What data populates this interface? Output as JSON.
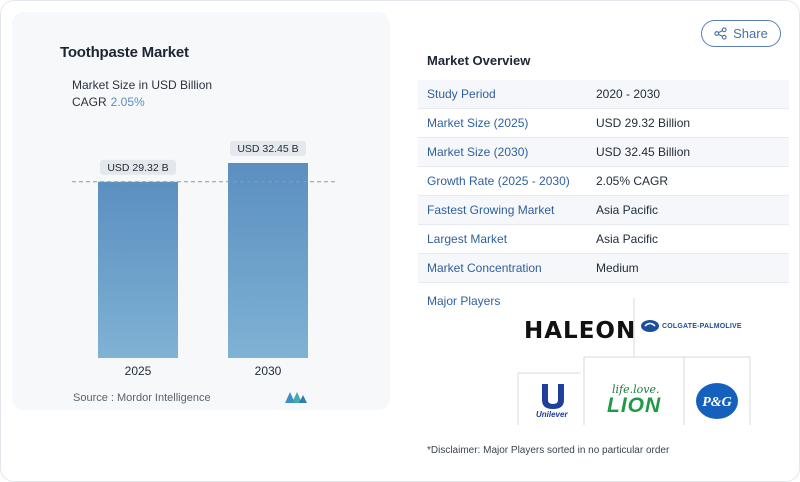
{
  "chart": {
    "title": "Toothpaste Market",
    "subtitle": "Market Size in USD Billion",
    "cagr_label": "CAGR",
    "cagr_value": "2.05%",
    "source": "Source :  Mordor Intelligence"
  },
  "chart_data": {
    "type": "bar",
    "categories": [
      "2025",
      "2030"
    ],
    "values": [
      29.32,
      32.45
    ],
    "data_labels": [
      "USD 29.32 B",
      "USD 32.45 B"
    ],
    "title": "Toothpaste Market",
    "subtitle": "Market Size in USD Billion",
    "ylim": [
      0,
      32.45
    ],
    "reference_line": 29.32,
    "bar_color": "#5b8fc0",
    "grid": false
  },
  "share": {
    "label": "Share",
    "icon": "share-icon"
  },
  "overview": {
    "title": "Market Overview",
    "rows": [
      {
        "key": "Study Period",
        "value": "2020 - 2030"
      },
      {
        "key": "Market Size (2025)",
        "value": "USD 29.32 Billion"
      },
      {
        "key": "Market Size (2030)",
        "value": "USD 32.45 Billion"
      },
      {
        "key": "Growth Rate (2025 - 2030)",
        "value": "2.05% CAGR"
      },
      {
        "key": "Fastest Growing Market",
        "value": "Asia Pacific"
      },
      {
        "key": "Largest Market",
        "value": "Asia Pacific"
      },
      {
        "key": "Market Concentration",
        "value": "Medium"
      }
    ]
  },
  "players": {
    "title": "Major Players",
    "logos": {
      "haleon": "HALEON",
      "colgate": "COLGATE-PALMOLIVE",
      "unilever": "Unilever",
      "lion_tagline": "life.love.",
      "lion": "LION",
      "pg": "P&G"
    }
  },
  "disclaimer": "*Disclaimer: Major Players sorted in no particular order",
  "colors": {
    "accent": "#2f5f9e",
    "bar_top": "#5b8fc0",
    "bar_bottom": "#7fb2d4"
  }
}
